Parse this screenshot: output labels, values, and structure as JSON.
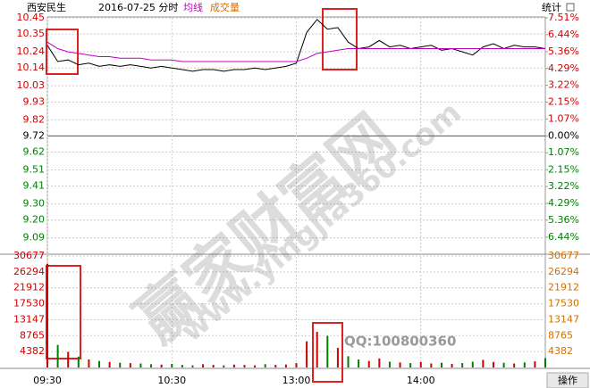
{
  "header": {
    "stock": "西安民生",
    "date": "2016-07-25 分时",
    "stats": "统计"
  },
  "chart_data": [
    {
      "type": "line",
      "x": [
        0,
        5,
        10,
        15,
        20,
        25,
        30,
        35,
        40,
        45,
        50,
        55,
        60,
        65,
        70,
        75,
        80,
        85,
        90,
        95,
        100,
        105,
        110,
        115,
        120,
        125,
        130,
        135,
        140,
        145,
        150,
        155,
        160,
        165,
        170,
        175,
        180,
        185,
        190,
        195,
        200,
        205,
        210,
        215,
        220,
        225,
        230,
        235,
        240
      ],
      "xlim": [
        0,
        240
      ],
      "series": [
        {
          "color": "#000000",
          "values": [
            10.28,
            10.18,
            10.19,
            10.16,
            10.17,
            10.15,
            10.16,
            10.15,
            10.16,
            10.15,
            10.14,
            10.15,
            10.14,
            10.13,
            10.12,
            10.13,
            10.13,
            10.12,
            10.13,
            10.13,
            10.14,
            10.13,
            10.14,
            10.15,
            10.17,
            10.36,
            10.44,
            10.38,
            10.39,
            10.3,
            10.26,
            10.27,
            10.31,
            10.27,
            10.28,
            10.26,
            10.27,
            10.28,
            10.25,
            10.26,
            10.24,
            10.22,
            10.27,
            10.29,
            10.26,
            10.28,
            10.27,
            10.27,
            10.26
          ]
        },
        {
          "name": "均线",
          "color": "#c000c0",
          "values": [
            10.3,
            10.26,
            10.24,
            10.23,
            10.22,
            10.21,
            10.21,
            10.2,
            10.2,
            10.2,
            10.19,
            10.19,
            10.19,
            10.18,
            10.18,
            10.18,
            10.18,
            10.18,
            10.18,
            10.18,
            10.18,
            10.18,
            10.18,
            10.18,
            10.18,
            10.2,
            10.23,
            10.24,
            10.25,
            10.26,
            10.26,
            10.26,
            10.26,
            10.26,
            10.26,
            10.26,
            10.26,
            10.26,
            10.26,
            10.26,
            10.26,
            10.26,
            10.26,
            10.26,
            10.26,
            10.26,
            10.26,
            10.26,
            10.26
          ]
        }
      ],
      "ylim": [
        9.0,
        10.45
      ],
      "yticks": [
        10.45,
        10.35,
        10.24,
        10.14,
        10.03,
        9.93,
        9.82,
        9.72,
        9.62,
        9.51,
        9.41,
        {
          "value": 9.3,
          "label": "9.30"
        },
        {
          "value": 9.2,
          "label": "9.20"
        },
        9.09
      ],
      "y2lim": [
        -7.41,
        7.51
      ],
      "y2ticks": [
        {
          "value": 7.51,
          "label": "7.51%"
        },
        {
          "value": 6.44,
          "label": "6.44%"
        },
        {
          "value": 5.36,
          "label": "5.36%"
        },
        {
          "value": 4.29,
          "label": "4.29%"
        },
        {
          "value": 3.22,
          "label": "3.22%"
        },
        {
          "value": 2.15,
          "label": "2.15%"
        },
        {
          "value": 1.07,
          "label": "1.07%"
        },
        {
          "value": 0,
          "label": "0.00%"
        },
        {
          "value": -1.07,
          "label": "1.07%"
        },
        {
          "value": -2.15,
          "label": "2.15%"
        },
        {
          "value": -3.22,
          "label": "3.22%"
        },
        {
          "value": -4.29,
          "label": "4.29%"
        },
        {
          "value": -5.36,
          "label": "5.36%"
        },
        {
          "value": -6.44,
          "label": "6.44%"
        }
      ],
      "grid": true
    },
    {
      "type": "bar",
      "x": [
        0,
        5,
        10,
        15,
        20,
        25,
        30,
        35,
        40,
        45,
        50,
        55,
        60,
        65,
        70,
        75,
        80,
        85,
        90,
        95,
        100,
        105,
        110,
        115,
        120,
        125,
        130,
        135,
        140,
        145,
        150,
        155,
        160,
        165,
        170,
        175,
        180,
        185,
        190,
        195,
        200,
        205,
        210,
        215,
        220,
        225,
        230,
        235,
        240
      ],
      "xlim": [
        0,
        240
      ],
      "xticks": [
        {
          "value": 0,
          "label": "09:30"
        },
        {
          "value": 60,
          "label": "10:30"
        },
        {
          "value": 120,
          "label": "13:00"
        },
        {
          "value": 180,
          "label": "14:00"
        }
      ],
      "series": [
        {
          "name": "成交量",
          "color": "#d07000",
          "values": [
            28500,
            6200,
            4300,
            3000,
            2200,
            1800,
            1500,
            1300,
            1200,
            1100,
            900,
            800,
            1000,
            700,
            600,
            900,
            700,
            600,
            800,
            700,
            600,
            900,
            700,
            800,
            1200,
            7200,
            9800,
            8700,
            5400,
            3100,
            2200,
            1800,
            2500,
            1600,
            1400,
            1200,
            1500,
            1100,
            1300,
            1000,
            1200,
            1600,
            2100,
            1500,
            1300,
            1100,
            1400,
            1700,
            2600
          ]
        }
      ],
      "ylim": [
        0,
        30677
      ],
      "yticks": [
        30677,
        26294,
        21912,
        17530,
        13147,
        8765,
        4382
      ],
      "grid": true
    }
  ],
  "watermark": {
    "site": "赢家财富网",
    "url": "www.yingjia360.com",
    "qq": "QQ:100800360"
  },
  "footer": {
    "action": "操作"
  }
}
